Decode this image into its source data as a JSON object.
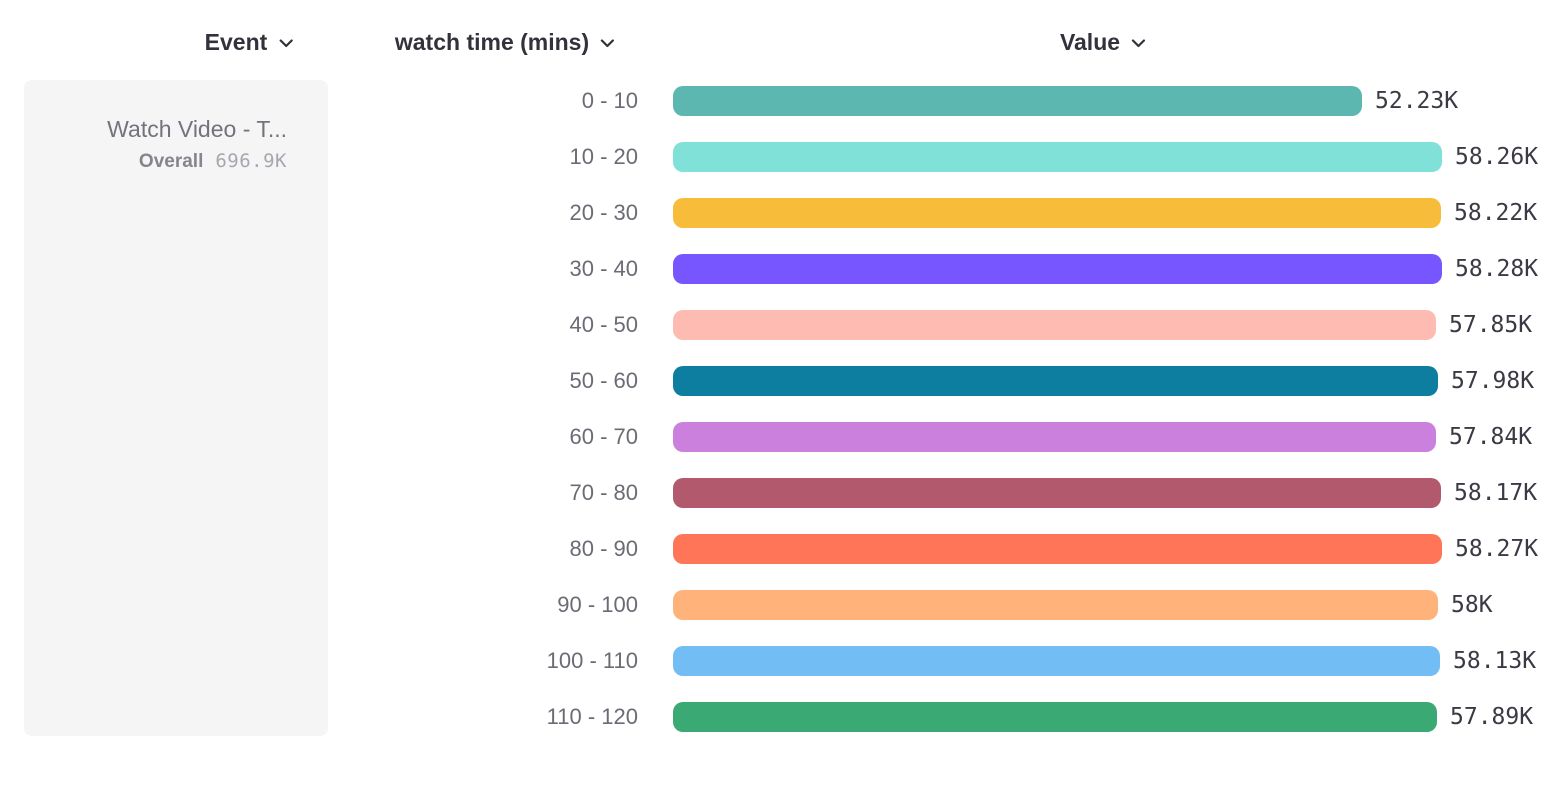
{
  "headers": {
    "event": "Event",
    "breakdown": "watch time (mins)",
    "value": "Value"
  },
  "event_card": {
    "title": "Watch Video - T...",
    "overall_label": "Overall",
    "overall_value": "696.9K"
  },
  "icons": {
    "header_dropdown": "chevron-down-icon"
  },
  "colors": {
    "header_text": "#32323C",
    "category_label": "#6B6B75",
    "value_label": "#3A3A44",
    "card_background": "#F5F5F6",
    "card_title": "#73737B",
    "card_overall_label": "#85858D",
    "card_overall_value": "#A7A7AF"
  },
  "chart_data": {
    "type": "bar",
    "orientation": "horizontal",
    "title": "",
    "series_name": "Watch Video - T...",
    "xlabel": "Value",
    "ylabel": "watch time (mins)",
    "legend_position": "left-card",
    "grid": false,
    "categories": [
      "0 - 10",
      "10 - 20",
      "20 - 30",
      "30 - 40",
      "40 - 50",
      "50 - 60",
      "60 - 70",
      "70 - 80",
      "80 - 90",
      "90 - 100",
      "100 - 110",
      "110 - 120"
    ],
    "values": [
      52230,
      58260,
      58220,
      58280,
      57850,
      57980,
      57840,
      58170,
      58270,
      58000,
      58130,
      57890
    ],
    "value_labels": [
      "52.23K",
      "58.26K",
      "58.22K",
      "58.28K",
      "57.85K",
      "57.98K",
      "57.84K",
      "58.17K",
      "58.27K",
      "58K",
      "58.13K",
      "57.89K"
    ],
    "colors": [
      "#5BB7AF",
      "#80E1D9",
      "#F8BC3B",
      "#7856FF",
      "#FEBBB2",
      "#0D7EA0",
      "#CA80DC",
      "#B2596E",
      "#FF7557",
      "#FFB27A",
      "#72BEF4",
      "#3BA974"
    ],
    "overall_total": "696.9K"
  }
}
